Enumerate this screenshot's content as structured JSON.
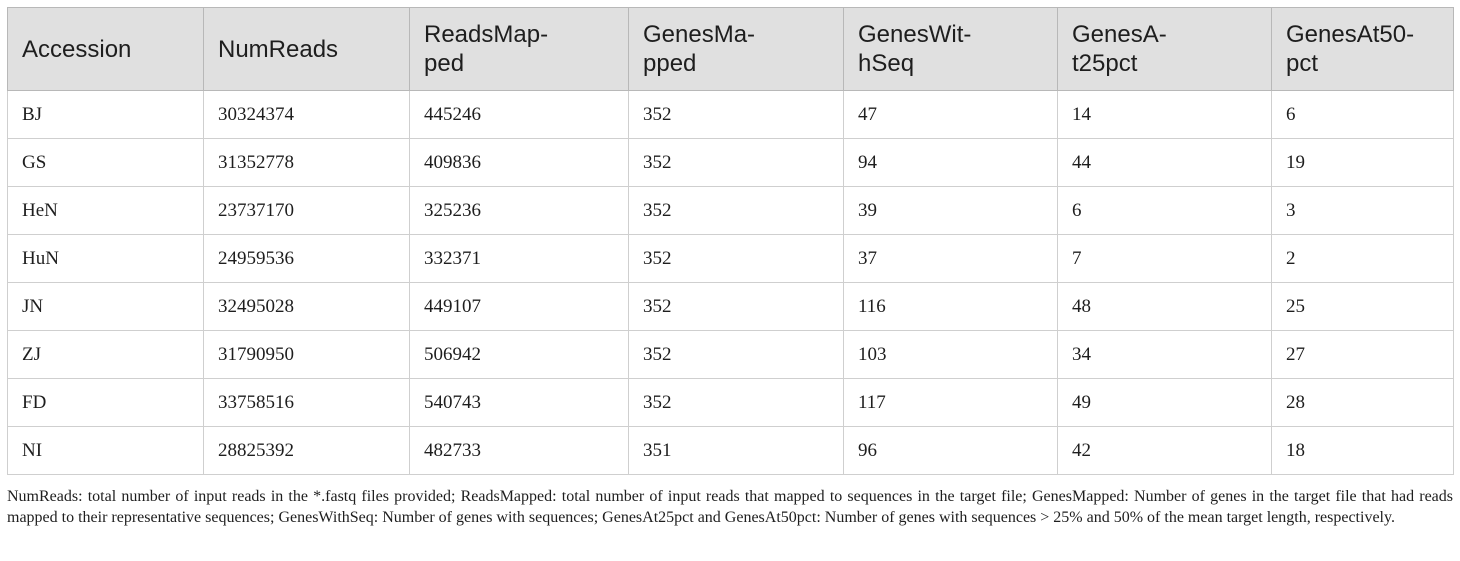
{
  "table": {
    "headers": [
      "Accession",
      "NumReads",
      "ReadsMap-\nped",
      "GenesMa-\npped",
      "GenesWit-\nhSeq",
      "GenesA-\nt25pct",
      "GenesAt50-\npct"
    ],
    "rows": [
      [
        "BJ",
        "30324374",
        "445246",
        "352",
        "47",
        "14",
        "6"
      ],
      [
        "GS",
        "31352778",
        "409836",
        "352",
        "94",
        "44",
        "19"
      ],
      [
        "HeN",
        "23737170",
        "325236",
        "352",
        "39",
        "6",
        "3"
      ],
      [
        "HuN",
        "24959536",
        "332371",
        "352",
        "37",
        "7",
        "2"
      ],
      [
        "JN",
        "32495028",
        "449107",
        "352",
        "116",
        "48",
        "25"
      ],
      [
        "ZJ",
        "31790950",
        "506942",
        "352",
        "103",
        "34",
        "27"
      ],
      [
        "FD",
        "33758516",
        "540743",
        "352",
        "117",
        "49",
        "28"
      ],
      [
        "NI",
        "28825392",
        "482733",
        "351",
        "96",
        "42",
        "18"
      ]
    ]
  },
  "footnote": "NumReads: total number of input reads in the *.fastq files provided; ReadsMapped: total number of input reads that mapped to sequences in the target file; GenesMapped: Number of genes in the target file that had reads mapped to their representative sequences; GenesWithSeq: Number of genes with sequences; GenesAt25pct and GenesAt50pct: Number of genes with sequences > 25% and 50% of the mean target length, respectively."
}
